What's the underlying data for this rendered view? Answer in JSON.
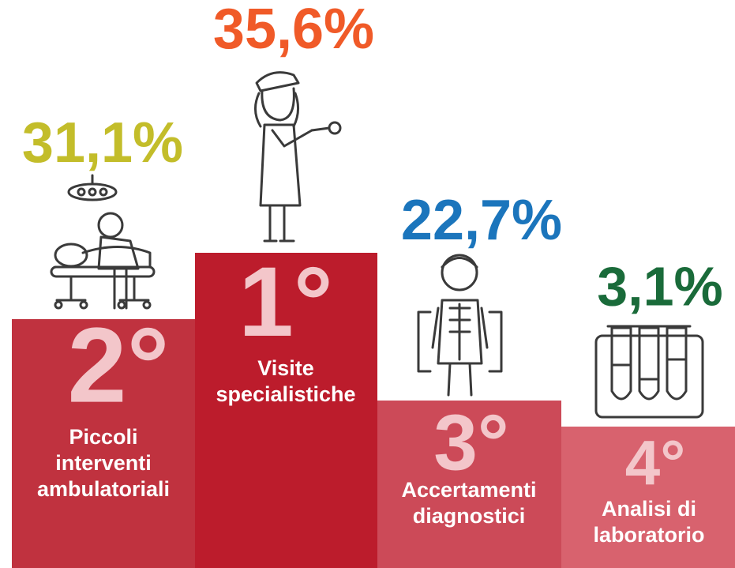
{
  "podium": [
    {
      "rank": "2°",
      "label": [
        "Piccoli",
        "interventi",
        "ambulatoriali"
      ],
      "share": "31,1%"
    },
    {
      "rank": "1°",
      "label": [
        "Visite",
        "specialistiche"
      ],
      "share": "35,6%"
    },
    {
      "rank": "3°",
      "label": [
        "Accertamenti",
        "diagnostici"
      ],
      "share": "22,7%"
    },
    {
      "rank": "4°",
      "label": [
        "Analisi di",
        "laboratorio"
      ],
      "share": "3,1%"
    }
  ]
}
